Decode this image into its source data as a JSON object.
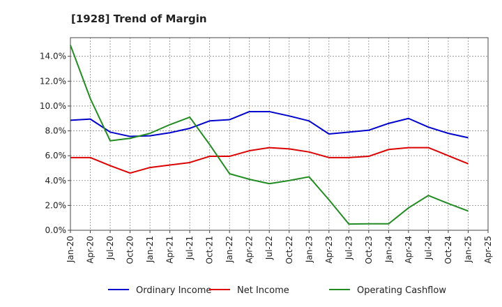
{
  "chart_data": {
    "type": "line",
    "title": "[1928]  Trend of Margin",
    "xlabel": "",
    "ylabel": "",
    "x_ticks": [
      "Jan-20",
      "Apr-20",
      "Jul-20",
      "Oct-20",
      "Jan-21",
      "Apr-21",
      "Jul-21",
      "Oct-21",
      "Jan-22",
      "Apr-22",
      "Jul-22",
      "Oct-22",
      "Jan-23",
      "Apr-23",
      "Jul-23",
      "Oct-23",
      "Jan-24",
      "Apr-24",
      "Jul-24",
      "Oct-24",
      "Jan-25",
      "Apr-25"
    ],
    "x": [
      "Jan-20",
      "Apr-20",
      "Jul-20",
      "Oct-20",
      "Jan-21",
      "Apr-21",
      "Jul-21",
      "Oct-21",
      "Jan-22",
      "Apr-22",
      "Jul-22",
      "Oct-22",
      "Jan-23",
      "Apr-23",
      "Jul-23",
      "Oct-23",
      "Jan-24",
      "Apr-24",
      "Jul-24",
      "Oct-24",
      "Jan-25"
    ],
    "ylim": [
      0,
      15.5
    ],
    "y_ticks": [
      0,
      2,
      4,
      6,
      8,
      10,
      12,
      14
    ],
    "y_tick_labels": [
      "0.0%",
      "2.0%",
      "4.0%",
      "6.0%",
      "8.0%",
      "10.0%",
      "12.0%",
      "14.0%"
    ],
    "grid": true,
    "legend_position": "bottom",
    "series": [
      {
        "name": "Ordinary Income",
        "color": "#0000cc",
        "values": [
          8.85,
          8.95,
          7.9,
          7.55,
          7.6,
          7.85,
          8.2,
          8.8,
          8.9,
          9.55,
          9.55,
          9.2,
          8.8,
          7.75,
          7.9,
          8.05,
          8.6,
          9.0,
          8.3,
          7.8,
          7.45
        ]
      },
      {
        "name": "Net Income",
        "color": "#dd0000",
        "values": [
          5.85,
          5.85,
          5.2,
          4.6,
          5.05,
          5.25,
          5.45,
          5.95,
          5.95,
          6.4,
          6.65,
          6.55,
          6.3,
          5.85,
          5.85,
          5.95,
          6.5,
          6.65,
          6.65,
          6.0,
          5.35
        ]
      },
      {
        "name": "Operating Cashflow",
        "color": "#228b22",
        "values": [
          14.9,
          10.6,
          7.2,
          7.4,
          7.8,
          8.5,
          9.1,
          6.9,
          4.55,
          4.1,
          3.75,
          4.0,
          4.3,
          2.45,
          0.5,
          0.52,
          0.52,
          1.8,
          2.8,
          2.15,
          1.55
        ]
      }
    ]
  }
}
